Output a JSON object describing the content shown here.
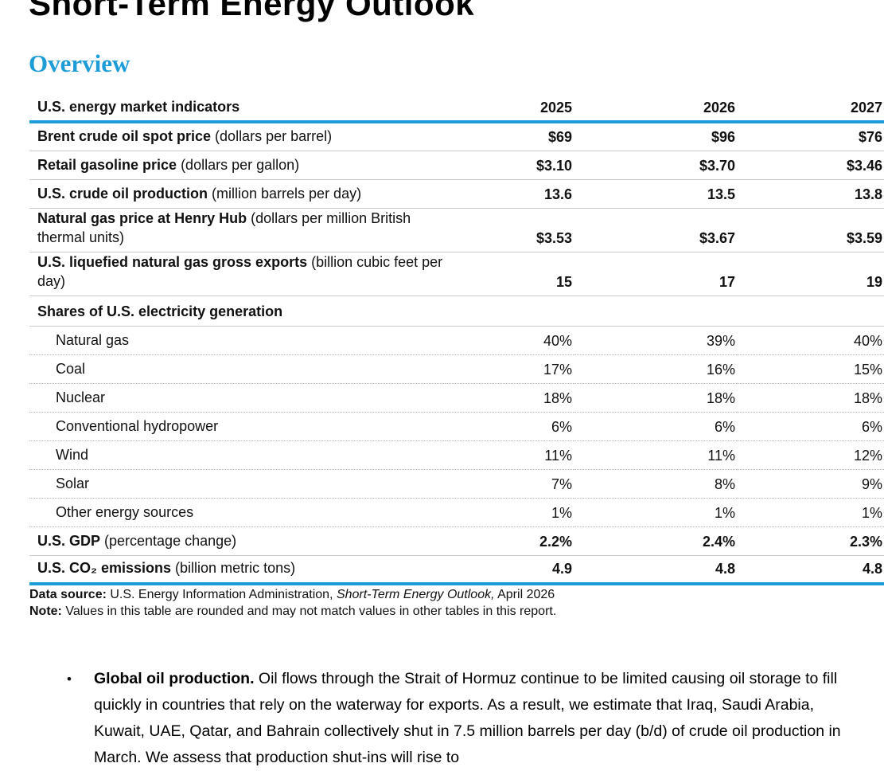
{
  "page": {
    "title": "Short-Term Energy Outlook",
    "section_heading": "Overview",
    "bullet_char": "•"
  },
  "colors": {
    "accent_blue": "#1E9CD7",
    "heading_blue": "#1E9CD7",
    "solid_separator": "#c9c9c9",
    "dotted_separator": "#b5b5b5"
  },
  "table": {
    "header": {
      "label": "U.S. energy market indicators",
      "years": [
        "2025",
        "2026",
        "2027"
      ]
    },
    "rows": [
      {
        "label": "Brent crude oil spot price",
        "unit": " (dollars per barrel)",
        "values": [
          "$69",
          "$96",
          "$76"
        ]
      },
      {
        "label": "Retail gasoline price",
        "unit": " (dollars per gallon)",
        "values": [
          "$3.10",
          "$3.70",
          "$3.46"
        ]
      },
      {
        "label": "U.S. crude oil production",
        "unit": " (million barrels per day)",
        "values": [
          "13.6",
          "13.5",
          "13.8"
        ]
      },
      {
        "label": "Natural gas price at Henry Hub",
        "unit": " (dollars per million British thermal units)",
        "values": [
          "$3.53",
          "$3.67",
          "$3.59"
        ]
      },
      {
        "label": "U.S. liquefied natural gas gross exports",
        "unit": " (billion cubic feet per day)",
        "values": [
          "15",
          "17",
          "19"
        ]
      },
      {
        "label": "Shares of U.S. electricity generation",
        "unit": "",
        "values": [
          "",
          "",
          ""
        ]
      },
      {
        "label": "Natural gas",
        "values": [
          "40%",
          "39%",
          "40%"
        ]
      },
      {
        "label": "Coal",
        "values": [
          "17%",
          "16%",
          "15%"
        ]
      },
      {
        "label": "Nuclear",
        "values": [
          "18%",
          "18%",
          "18%"
        ]
      },
      {
        "label": "Conventional hydropower",
        "values": [
          "6%",
          "6%",
          "6%"
        ]
      },
      {
        "label": "Wind",
        "values": [
          "11%",
          "11%",
          "12%"
        ]
      },
      {
        "label": "Solar",
        "values": [
          "7%",
          "8%",
          "9%"
        ]
      },
      {
        "label": "Other energy sources",
        "values": [
          "1%",
          "1%",
          "1%"
        ]
      },
      {
        "label": "U.S. GDP",
        "unit": " (percentage change)",
        "values": [
          "2.2%",
          "2.4%",
          "2.3%"
        ]
      },
      {
        "label": "U.S. CO₂ emissions",
        "unit": " (billion metric tons)",
        "values": [
          "4.9",
          "4.8",
          "4.8"
        ]
      }
    ],
    "footer": {
      "data_source_label": "Data source:",
      "data_source_pre": " U.S. Energy Information Administration, ",
      "data_source_italic": "Short-Term Energy Outlook,",
      "data_source_post": " April 2026",
      "note_label": "Note:",
      "note_text": " Values in this table are rounded and may not match values in other tables in this report."
    }
  },
  "bullet": {
    "lead": "Global oil production.",
    "body": " Oil flows through the Strait of Hormuz continue to be limited causing oil storage to fill quickly in countries that rely on the waterway for exports. As a result, we estimate that Iraq, Saudi Arabia, Kuwait, UAE, Qatar, and Bahrain collectively shut in 7.5 million barrels per day (b/d) of crude oil production in March. We assess that production shut-ins will rise to"
  }
}
